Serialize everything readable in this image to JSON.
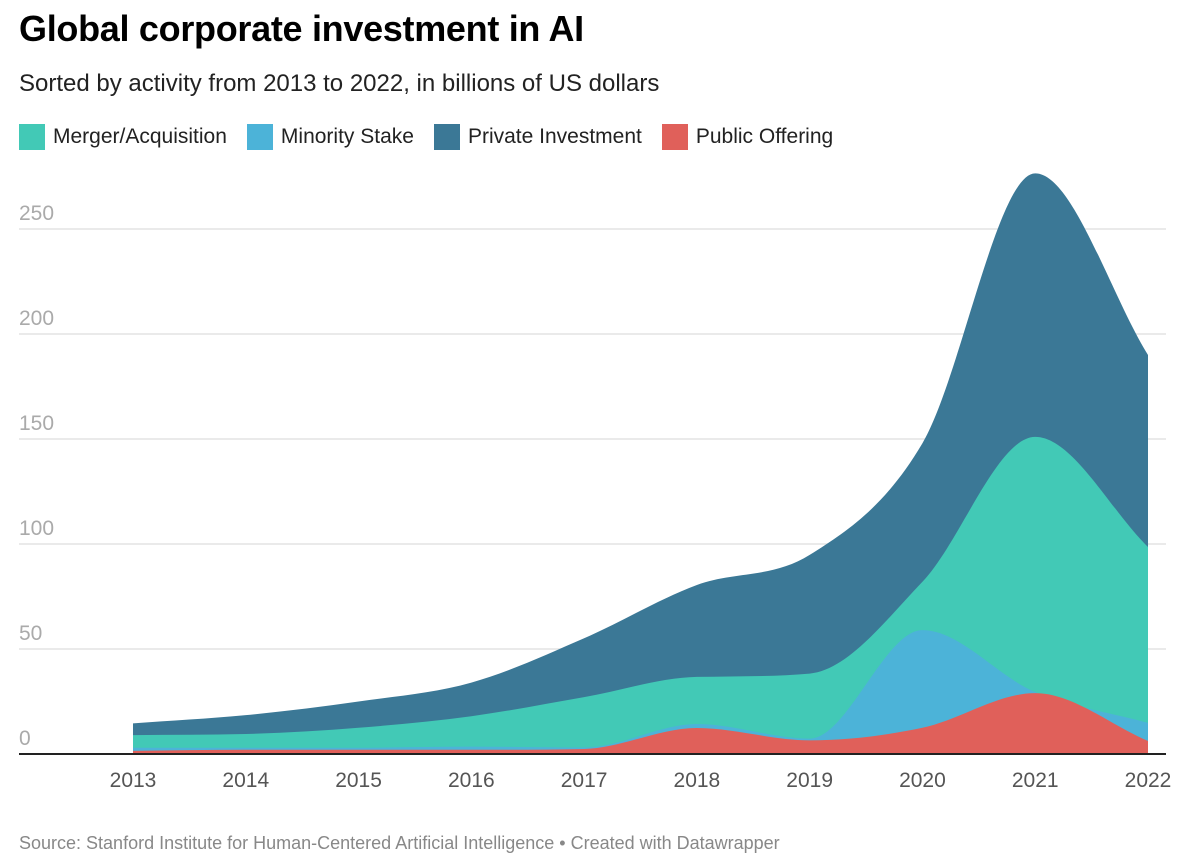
{
  "title": "Global corporate investment in AI",
  "subtitle": "Sorted by activity from 2013 to 2022, in billions of US dollars",
  "footer": "Source: Stanford Institute for Human-Centered Artificial Intelligence • Created with Datawrapper",
  "legend": [
    {
      "label": "Merger/Acquisition",
      "color": "#42c9b6"
    },
    {
      "label": "Minority Stake",
      "color": "#4cb3d8"
    },
    {
      "label": "Private Investment",
      "color": "#3b7896"
    },
    {
      "label": "Public Offering",
      "color": "#e0605a"
    }
  ],
  "chart_data": {
    "type": "area",
    "stacked": true,
    "title": "Global corporate investment in AI",
    "subtitle": "Sorted by activity from 2013 to 2022, in billions of US dollars",
    "xlabel": "",
    "ylabel": "",
    "categories": [
      "2013",
      "2014",
      "2015",
      "2016",
      "2017",
      "2018",
      "2019",
      "2020",
      "2021",
      "2022"
    ],
    "y_ticks": [
      0,
      50,
      100,
      150,
      200,
      250
    ],
    "ylim": [
      0,
      275
    ],
    "grid": true,
    "legend_position": "top-left",
    "stack_order_bottom_to_top": [
      "Public Offering",
      "Minority Stake",
      "Merger/Acquisition",
      "Private Investment"
    ],
    "series": [
      {
        "name": "Public Offering",
        "color": "#e0605a",
        "values": [
          1.5,
          2,
          2,
          2,
          2.4,
          12.4,
          6.5,
          12.5,
          29,
          6.2
        ]
      },
      {
        "name": "Minority Stake",
        "color": "#4cb3d8",
        "values": [
          1.5,
          1,
          1,
          1.5,
          0.7,
          1.9,
          0.8,
          46.5,
          0.5,
          8.6
        ]
      },
      {
        "name": "Merger/Acquisition",
        "color": "#42c9b6",
        "values": [
          6,
          6.5,
          9.5,
          14.5,
          24,
          22.4,
          31,
          23,
          121.5,
          83.8
        ]
      },
      {
        "name": "Private Investment",
        "color": "#3b7896",
        "values": [
          5.6,
          9,
          12.5,
          16,
          28,
          43.8,
          56.5,
          66,
          125.5,
          91.4
        ]
      }
    ]
  }
}
